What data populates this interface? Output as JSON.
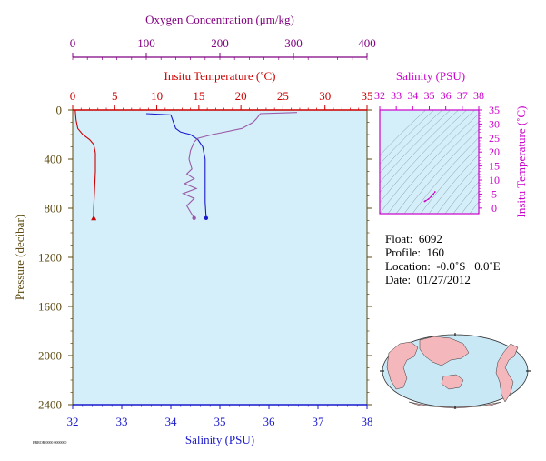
{
  "colors": {
    "oxygen": "#800080",
    "temperature": "#cc0000",
    "salinity": "#1a1acc",
    "pressure": "#5c4a10",
    "salinity_panel": "#cc00cc",
    "plot_bg": "#d4effa",
    "oxygen_profile": "#9a5aa6"
  },
  "chart_data": [
    {
      "type": "line",
      "subplot": "profile",
      "axes": {
        "oxygen": {
          "label": "Oxygen Concentration (μm/kg)",
          "range": [
            0,
            400
          ],
          "ticks": [
            "0",
            "100",
            "200",
            "300",
            "400"
          ]
        },
        "temperature": {
          "label": "Insitu Temperature (˚C)",
          "range": [
            0,
            35
          ],
          "ticks": [
            "0",
            "5",
            "10",
            "15",
            "20",
            "25",
            "30",
            "35"
          ]
        },
        "pressure": {
          "label": "Pressure (decibar)",
          "range": [
            0,
            2400
          ],
          "inverted": true,
          "ticks": [
            "0",
            "400",
            "800",
            "1200",
            "1600",
            "2000",
            "2400"
          ]
        },
        "salinity": {
          "label": "Salinity (PSU)",
          "range": [
            32,
            38
          ],
          "ticks": [
            "32",
            "33",
            "34",
            "35",
            "36",
            "37",
            "38"
          ]
        }
      },
      "series": [
        {
          "axis": "temperature",
          "color_key": "temperature",
          "points": [
            [
              0.3,
              0
            ],
            [
              0.4,
              80
            ],
            [
              0.6,
              150
            ],
            [
              1.2,
              200
            ],
            [
              2.0,
              240
            ],
            [
              2.5,
              280
            ],
            [
              2.7,
              350
            ],
            [
              2.7,
              500
            ],
            [
              2.6,
              650
            ],
            [
              2.5,
              800
            ],
            [
              2.5,
              880
            ]
          ],
          "end_marker": "triangle"
        },
        {
          "axis": "salinity",
          "color_key": "salinity",
          "points": [
            [
              33.5,
              30
            ],
            [
              34.0,
              40
            ],
            [
              34.1,
              150
            ],
            [
              34.2,
              180
            ],
            [
              34.4,
              200
            ],
            [
              34.55,
              240
            ],
            [
              34.65,
              300
            ],
            [
              34.7,
              400
            ],
            [
              34.7,
              500
            ],
            [
              34.7,
              600
            ],
            [
              34.7,
              750
            ],
            [
              34.72,
              880
            ]
          ],
          "end_marker": "circle"
        },
        {
          "axis": "oxygen",
          "color_key": "oxygen_profile",
          "points": [
            [
              305,
              20
            ],
            [
              255,
              30
            ],
            [
              250,
              70
            ],
            [
              245,
              100
            ],
            [
              230,
              150
            ],
            [
              190,
              200
            ],
            [
              170,
              230
            ],
            [
              165,
              260
            ],
            [
              160,
              330
            ],
            [
              158,
              400
            ],
            [
              162,
              480
            ],
            [
              155,
              520
            ],
            [
              165,
              560
            ],
            [
              152,
              600
            ],
            [
              168,
              640
            ],
            [
              150,
              680
            ],
            [
              165,
              720
            ],
            [
              155,
              780
            ],
            [
              160,
              830
            ],
            [
              165,
              880
            ]
          ],
          "end_marker": "circle"
        }
      ]
    },
    {
      "type": "scatter",
      "subplot": "ts-diagram",
      "title": "Salinity (PSU)",
      "xlim": [
        32,
        38
      ],
      "ylim": [
        -2,
        35
      ],
      "x_ticks": [
        "32",
        "33",
        "34",
        "35",
        "36",
        "37",
        "38"
      ],
      "y_ticks": [
        "0",
        "5",
        "10",
        "15",
        "20",
        "25",
        "30",
        "35"
      ],
      "ylabel": "Insitu Temperature (˚C)",
      "points": [
        [
          34.72,
          2.4
        ],
        [
          34.78,
          2.6
        ],
        [
          34.95,
          3.2
        ],
        [
          35.1,
          4.0
        ],
        [
          35.25,
          5.0
        ],
        [
          35.35,
          5.8
        ]
      ]
    }
  ],
  "info": {
    "float": "Float:  6092",
    "profile": "Profile:  160",
    "location": "Location:  -0.0˚S   0.0˚E",
    "date": "Date:  01/27/2012"
  },
  "footer_note": "ERROR 0000 0000000"
}
